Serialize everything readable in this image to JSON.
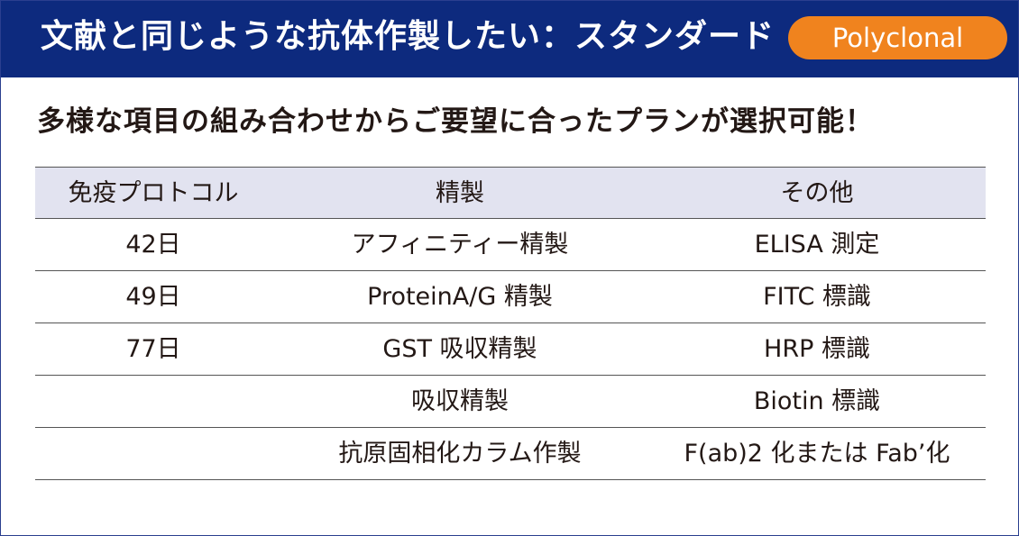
{
  "header": {
    "title": "文献と同じような抗体作製したい：スタンダード",
    "badge": "Polyclonal"
  },
  "subtitle": "多様な項目の組み合わせからご要望に合ったプランが選択可能！",
  "table": {
    "columns": [
      "免疫プロトコル",
      "精製",
      "その他"
    ],
    "rows": [
      [
        "42日",
        "アフィニティー精製",
        "ELISA 測定"
      ],
      [
        "49日",
        "ProteinA/G 精製",
        "FITC 標識"
      ],
      [
        "77日",
        "GST 吸収精製",
        "HRP 標識"
      ],
      [
        "",
        "吸収精製",
        "Biotin 標識"
      ],
      [
        "",
        "抗原固相化カラム作製",
        "F(ab)2 化または Fab’化"
      ]
    ]
  },
  "colors": {
    "header_bg": "#0d2a7e",
    "badge_bg": "#f0831e",
    "table_head_bg": "#e2e3f0"
  }
}
